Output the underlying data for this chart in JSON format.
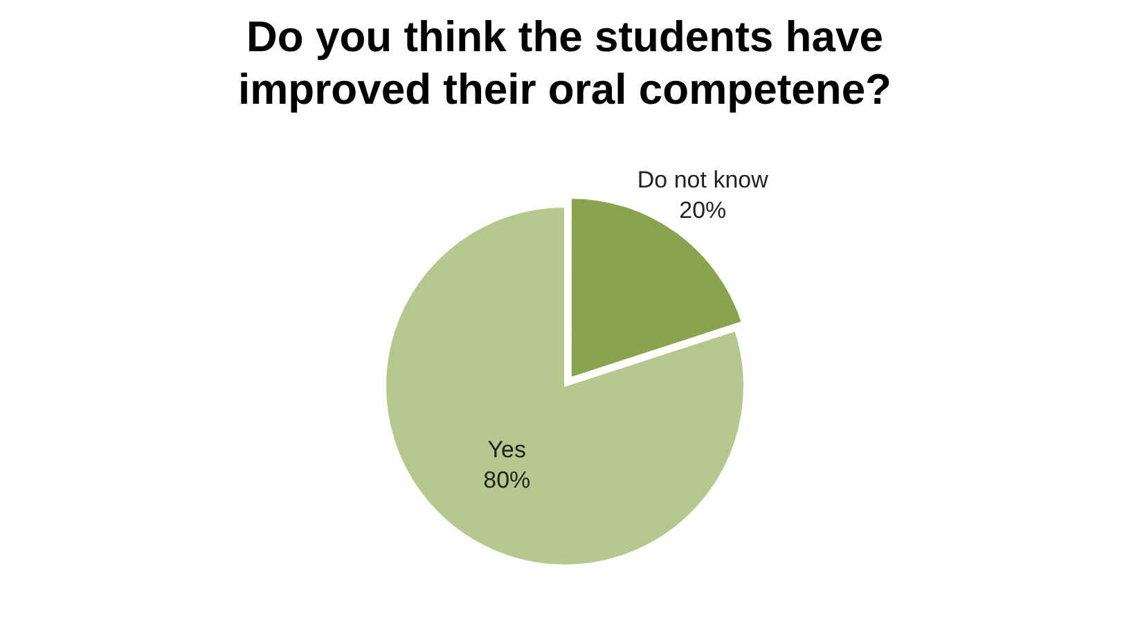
{
  "chart_data": {
    "type": "pie",
    "title": "Do you think the students have improved their oral competene?",
    "categories": [
      "Yes",
      "Do not know"
    ],
    "values": [
      80,
      20
    ],
    "colors": [
      "#b5c98f",
      "#8aa34f"
    ],
    "value_labels": [
      "80%",
      "20%"
    ],
    "legend": false
  }
}
